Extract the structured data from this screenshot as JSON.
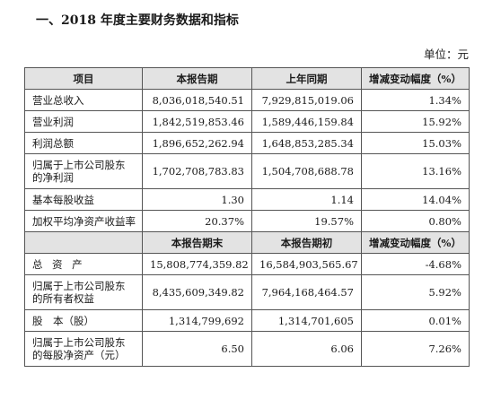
{
  "heading": "一、2018 年度主要财务数据和指标",
  "unit": "单位：元",
  "table": {
    "header1": [
      "项目",
      "本报告期",
      "上年同期",
      "增减变动幅度（%）"
    ],
    "rows1": [
      {
        "label": "营业总收入",
        "current": "8,036,018,540.51",
        "previous": "7,929,815,019.06",
        "change": "1.34%"
      },
      {
        "label": "营业利润",
        "current": "1,842,519,853.46",
        "previous": "1,589,446,159.84",
        "change": "15.92%"
      },
      {
        "label": "利润总额",
        "current": "1,896,652,262.94",
        "previous": "1,648,853,285.34",
        "change": "15.03%"
      },
      {
        "label": "归属于上市公司股东的净利润",
        "current": "1,702,708,783.83",
        "previous": "1,504,708,688.78",
        "change": "13.16%"
      },
      {
        "label": "基本每股收益",
        "current": "1.30",
        "previous": "1.14",
        "change": "14.04%"
      },
      {
        "label": "加权平均净资产收益率",
        "current": "20.37%",
        "previous": "19.57%",
        "change": "0.80%"
      }
    ],
    "header2": [
      "",
      "本报告期末",
      "本报告期初",
      "增减变动幅度（%）"
    ],
    "rows2": [
      {
        "label": "总 资 产",
        "current": "15,808,774,359.82",
        "previous": "16,584,903,565.67",
        "change": "-4.68%"
      },
      {
        "label": "归属于上市公司股东的所有者权益",
        "current": "8,435,609,349.82",
        "previous": "7,964,168,464.57",
        "change": "5.92%"
      },
      {
        "label": "股　本（股）",
        "current": "1,314,799,692",
        "previous": "1,314,701,605",
        "change": "0.01%"
      },
      {
        "label": "归属于上市公司股东的每股净资产（元）",
        "current": "6.50",
        "previous": "6.06",
        "change": "7.26%"
      }
    ]
  }
}
